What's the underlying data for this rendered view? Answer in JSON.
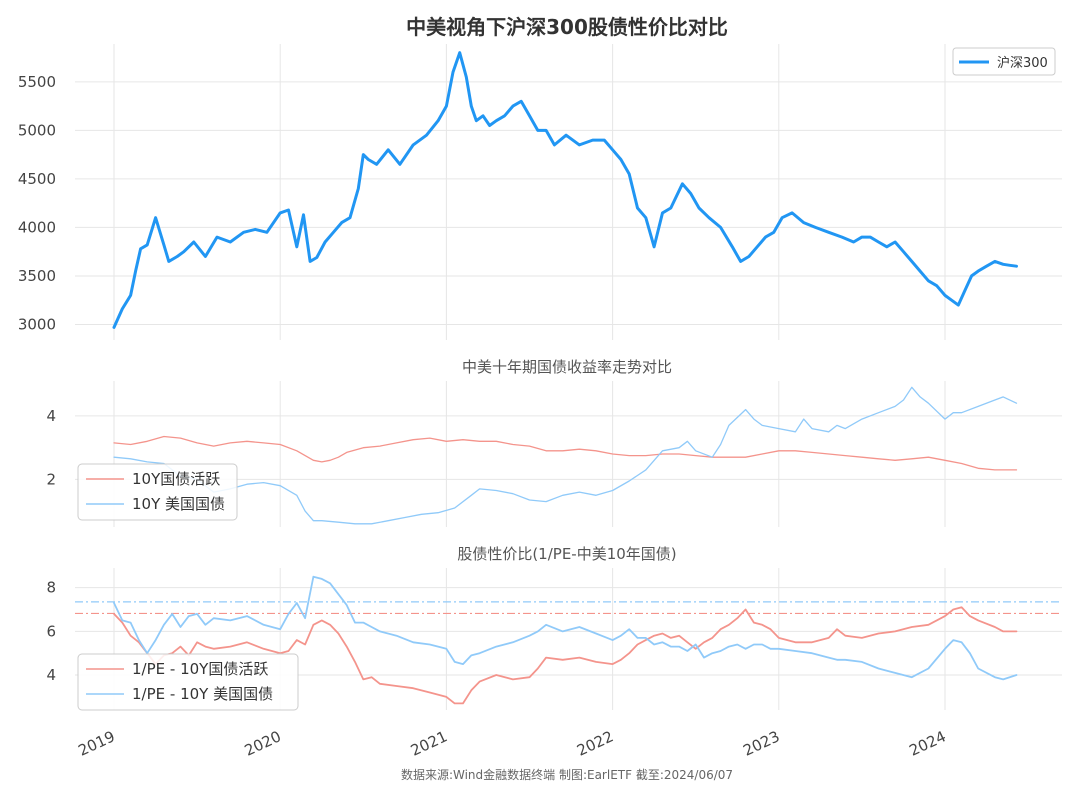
{
  "colors": {
    "hs300": "#2196f3",
    "cn10y": "#f4948c",
    "us10y": "#90caf9",
    "cn_ref": "#f4948c",
    "us_ref": "#90caf9"
  },
  "footer": "数据来源:Wind金融数据终端  制图:EarlETF 截至:2024/06/07",
  "x_ticks": [
    "2019",
    "2020",
    "2021",
    "2022",
    "2023",
    "2024"
  ],
  "chart_data": [
    {
      "id": "top",
      "type": "line",
      "title": "中美视角下沪深300股债性价比对比",
      "x_range": [
        2018.99,
        2024.43
      ],
      "ylim": [
        2840,
        5890
      ],
      "y_ticks": [
        3000,
        3500,
        4000,
        4500,
        5000,
        5500
      ],
      "legend": {
        "position": "top-right",
        "entries": [
          "沪深300"
        ]
      },
      "series": [
        {
          "name": "沪深300",
          "color_key": "hs300",
          "x": [
            2019.0,
            2019.05,
            2019.1,
            2019.13,
            2019.16,
            2019.2,
            2019.25,
            2019.3,
            2019.33,
            2019.38,
            2019.42,
            2019.48,
            2019.55,
            2019.62,
            2019.7,
            2019.78,
            2019.85,
            2019.92,
            2020.0,
            2020.05,
            2020.1,
            2020.14,
            2020.18,
            2020.22,
            2020.27,
            2020.32,
            2020.37,
            2020.42,
            2020.47,
            2020.5,
            2020.53,
            2020.58,
            2020.65,
            2020.72,
            2020.8,
            2020.88,
            2020.95,
            2021.0,
            2021.04,
            2021.08,
            2021.12,
            2021.15,
            2021.18,
            2021.22,
            2021.26,
            2021.3,
            2021.35,
            2021.4,
            2021.45,
            2021.5,
            2021.55,
            2021.6,
            2021.65,
            2021.72,
            2021.8,
            2021.88,
            2021.95,
            2022.0,
            2022.05,
            2022.1,
            2022.15,
            2022.2,
            2022.25,
            2022.3,
            2022.35,
            2022.42,
            2022.47,
            2022.52,
            2022.58,
            2022.65,
            2022.72,
            2022.77,
            2022.82,
            2022.87,
            2022.92,
            2022.97,
            2023.02,
            2023.08,
            2023.15,
            2023.22,
            2023.3,
            2023.38,
            2023.45,
            2023.5,
            2023.55,
            2023.6,
            2023.65,
            2023.7,
            2023.75,
            2023.8,
            2023.85,
            2023.9,
            2023.95,
            2024.0,
            2024.04,
            2024.08,
            2024.12,
            2024.16,
            2024.2,
            2024.25,
            2024.3,
            2024.35,
            2024.39,
            2024.43
          ],
          "y": [
            2970,
            3160,
            3300,
            3550,
            3780,
            3820,
            4100,
            3820,
            3650,
            3700,
            3750,
            3850,
            3700,
            3900,
            3850,
            3950,
            3980,
            3950,
            4150,
            4180,
            3800,
            4130,
            3650,
            3690,
            3850,
            3950,
            4050,
            4100,
            4400,
            4750,
            4700,
            4650,
            4800,
            4650,
            4850,
            4950,
            5100,
            5250,
            5600,
            5800,
            5550,
            5250,
            5100,
            5150,
            5050,
            5100,
            5150,
            5250,
            5300,
            5150,
            5000,
            5000,
            4850,
            4950,
            4850,
            4900,
            4900,
            4800,
            4700,
            4550,
            4200,
            4100,
            3800,
            4150,
            4200,
            4450,
            4350,
            4200,
            4100,
            4000,
            3800,
            3650,
            3700,
            3800,
            3900,
            3950,
            4100,
            4150,
            4050,
            4000,
            3950,
            3900,
            3850,
            3900,
            3900,
            3850,
            3800,
            3850,
            3750,
            3650,
            3550,
            3450,
            3400,
            3300,
            3250,
            3200,
            3350,
            3500,
            3550,
            3600,
            3650,
            3620,
            3610,
            3600
          ]
        }
      ]
    },
    {
      "id": "middle",
      "type": "line",
      "title": "中美十年期国债收益率走势对比",
      "x_range": [
        2018.99,
        2024.43
      ],
      "ylim": [
        0.5,
        5.1
      ],
      "y_ticks": [
        2,
        4
      ],
      "legend": {
        "position": "lower-left",
        "entries": [
          "10Y国债活跃",
          "10Y 美国国债"
        ]
      },
      "series": [
        {
          "name": "10Y国债活跃",
          "color_key": "cn10y",
          "x": [
            2019.0,
            2019.1,
            2019.2,
            2019.3,
            2019.4,
            2019.5,
            2019.6,
            2019.7,
            2019.8,
            2019.9,
            2020.0,
            2020.1,
            2020.2,
            2020.25,
            2020.3,
            2020.35,
            2020.4,
            2020.5,
            2020.6,
            2020.7,
            2020.8,
            2020.9,
            2021.0,
            2021.1,
            2021.2,
            2021.3,
            2021.4,
            2021.5,
            2021.6,
            2021.7,
            2021.8,
            2021.9,
            2022.0,
            2022.1,
            2022.2,
            2022.3,
            2022.4,
            2022.5,
            2022.6,
            2022.7,
            2022.8,
            2022.9,
            2023.0,
            2023.1,
            2023.2,
            2023.3,
            2023.4,
            2023.5,
            2023.6,
            2023.7,
            2023.8,
            2023.9,
            2024.0,
            2024.1,
            2024.2,
            2024.3,
            2024.43
          ],
          "y": [
            3.15,
            3.1,
            3.2,
            3.35,
            3.3,
            3.15,
            3.05,
            3.15,
            3.2,
            3.15,
            3.1,
            2.9,
            2.6,
            2.55,
            2.6,
            2.7,
            2.85,
            3.0,
            3.05,
            3.15,
            3.25,
            3.3,
            3.2,
            3.25,
            3.2,
            3.2,
            3.1,
            3.05,
            2.9,
            2.9,
            2.95,
            2.9,
            2.8,
            2.75,
            2.75,
            2.8,
            2.8,
            2.75,
            2.7,
            2.7,
            2.7,
            2.8,
            2.9,
            2.9,
            2.85,
            2.8,
            2.75,
            2.7,
            2.65,
            2.6,
            2.65,
            2.7,
            2.6,
            2.5,
            2.35,
            2.3,
            2.3
          ]
        },
        {
          "name": "10Y 美国国债",
          "color_key": "us10y",
          "x": [
            2019.0,
            2019.1,
            2019.2,
            2019.3,
            2019.4,
            2019.5,
            2019.6,
            2019.7,
            2019.8,
            2019.9,
            2020.0,
            2020.1,
            2020.15,
            2020.2,
            2020.25,
            2020.35,
            2020.45,
            2020.55,
            2020.65,
            2020.75,
            2020.85,
            2020.95,
            2021.05,
            2021.15,
            2021.2,
            2021.3,
            2021.4,
            2021.5,
            2021.6,
            2021.7,
            2021.8,
            2021.9,
            2022.0,
            2022.1,
            2022.2,
            2022.3,
            2022.4,
            2022.45,
            2022.5,
            2022.6,
            2022.65,
            2022.7,
            2022.8,
            2022.85,
            2022.9,
            2023.0,
            2023.1,
            2023.15,
            2023.2,
            2023.3,
            2023.35,
            2023.4,
            2023.5,
            2023.6,
            2023.7,
            2023.75,
            2023.8,
            2023.85,
            2023.9,
            2024.0,
            2024.05,
            2024.1,
            2024.2,
            2024.3,
            2024.35,
            2024.43
          ],
          "y": [
            2.7,
            2.65,
            2.55,
            2.5,
            2.1,
            2.0,
            1.6,
            1.7,
            1.85,
            1.9,
            1.8,
            1.5,
            1.0,
            0.7,
            0.7,
            0.65,
            0.6,
            0.6,
            0.7,
            0.8,
            0.9,
            0.95,
            1.1,
            1.5,
            1.7,
            1.65,
            1.55,
            1.35,
            1.3,
            1.5,
            1.6,
            1.5,
            1.65,
            1.95,
            2.3,
            2.9,
            3.0,
            3.2,
            2.9,
            2.7,
            3.1,
            3.7,
            4.2,
            3.9,
            3.7,
            3.6,
            3.5,
            3.9,
            3.6,
            3.5,
            3.7,
            3.6,
            3.9,
            4.1,
            4.3,
            4.5,
            4.9,
            4.6,
            4.4,
            3.9,
            4.1,
            4.1,
            4.3,
            4.5,
            4.6,
            4.4
          ]
        }
      ]
    },
    {
      "id": "bottom",
      "type": "line",
      "title": "股债性价比(1/PE-中美10年国债)",
      "x_range": [
        2018.99,
        2024.43
      ],
      "ylim": [
        2.4,
        8.9
      ],
      "y_ticks": [
        4,
        6,
        8
      ],
      "reference_lines": [
        {
          "color_key": "us_ref",
          "value": 7.35
        },
        {
          "color_key": "cn_ref",
          "value": 6.82
        }
      ],
      "legend": {
        "position": "lower-left",
        "entries": [
          "1/PE - 10Y国债活跃",
          "1/PE - 10Y 美国国债"
        ]
      },
      "series": [
        {
          "name": "1/PE - 10Y国债活跃",
          "color_key": "cn10y",
          "x": [
            2019.0,
            2019.05,
            2019.1,
            2019.15,
            2019.2,
            2019.25,
            2019.3,
            2019.35,
            2019.4,
            2019.45,
            2019.5,
            2019.55,
            2019.6,
            2019.7,
            2019.8,
            2019.9,
            2020.0,
            2020.05,
            2020.1,
            2020.15,
            2020.2,
            2020.25,
            2020.3,
            2020.35,
            2020.4,
            2020.45,
            2020.5,
            2020.55,
            2020.6,
            2020.7,
            2020.8,
            2020.9,
            2021.0,
            2021.05,
            2021.1,
            2021.15,
            2021.2,
            2021.3,
            2021.4,
            2021.5,
            2021.55,
            2021.6,
            2021.7,
            2021.8,
            2021.9,
            2022.0,
            2022.05,
            2022.1,
            2022.15,
            2022.2,
            2022.25,
            2022.3,
            2022.35,
            2022.4,
            2022.45,
            2022.5,
            2022.55,
            2022.6,
            2022.65,
            2022.7,
            2022.75,
            2022.8,
            2022.85,
            2022.9,
            2022.95,
            2023.0,
            2023.1,
            2023.2,
            2023.3,
            2023.35,
            2023.4,
            2023.5,
            2023.6,
            2023.7,
            2023.8,
            2023.9,
            2024.0,
            2024.05,
            2024.1,
            2024.15,
            2024.2,
            2024.3,
            2024.35,
            2024.43
          ],
          "y": [
            6.8,
            6.4,
            5.8,
            5.5,
            5.0,
            4.5,
            4.9,
            5.0,
            5.3,
            4.9,
            5.5,
            5.3,
            5.2,
            5.3,
            5.5,
            5.2,
            5.0,
            5.1,
            5.6,
            5.4,
            6.3,
            6.5,
            6.3,
            5.9,
            5.3,
            4.6,
            3.8,
            3.9,
            3.6,
            3.5,
            3.4,
            3.2,
            3.0,
            2.7,
            2.7,
            3.3,
            3.7,
            4.0,
            3.8,
            3.9,
            4.3,
            4.8,
            4.7,
            4.8,
            4.6,
            4.5,
            4.7,
            5.0,
            5.4,
            5.6,
            5.8,
            5.9,
            5.7,
            5.8,
            5.5,
            5.2,
            5.5,
            5.7,
            6.1,
            6.3,
            6.6,
            7.0,
            6.4,
            6.3,
            6.1,
            5.7,
            5.5,
            5.5,
            5.7,
            6.1,
            5.8,
            5.7,
            5.9,
            6.0,
            6.2,
            6.3,
            6.7,
            7.0,
            7.1,
            6.7,
            6.5,
            6.2,
            6.0,
            6.0
          ]
        },
        {
          "name": "1/PE - 10Y 美国国债",
          "color_key": "us10y",
          "x": [
            2019.0,
            2019.05,
            2019.1,
            2019.15,
            2019.2,
            2019.25,
            2019.3,
            2019.35,
            2019.4,
            2019.45,
            2019.5,
            2019.55,
            2019.6,
            2019.7,
            2019.8,
            2019.9,
            2020.0,
            2020.05,
            2020.1,
            2020.15,
            2020.2,
            2020.25,
            2020.3,
            2020.35,
            2020.4,
            2020.45,
            2020.5,
            2020.55,
            2020.6,
            2020.7,
            2020.8,
            2020.9,
            2021.0,
            2021.05,
            2021.1,
            2021.15,
            2021.2,
            2021.3,
            2021.4,
            2021.5,
            2021.55,
            2021.6,
            2021.7,
            2021.8,
            2021.9,
            2022.0,
            2022.05,
            2022.1,
            2022.15,
            2022.2,
            2022.25,
            2022.3,
            2022.35,
            2022.4,
            2022.45,
            2022.5,
            2022.55,
            2022.6,
            2022.65,
            2022.7,
            2022.75,
            2022.8,
            2022.85,
            2022.9,
            2022.95,
            2023.0,
            2023.1,
            2023.2,
            2023.3,
            2023.35,
            2023.4,
            2023.5,
            2023.6,
            2023.7,
            2023.8,
            2023.9,
            2024.0,
            2024.05,
            2024.1,
            2024.15,
            2024.2,
            2024.3,
            2024.35,
            2024.43
          ],
          "y": [
            7.3,
            6.5,
            6.4,
            5.6,
            5.0,
            5.6,
            6.3,
            6.8,
            6.2,
            6.7,
            6.8,
            6.3,
            6.6,
            6.5,
            6.7,
            6.3,
            6.1,
            6.8,
            7.3,
            6.6,
            8.5,
            8.4,
            8.2,
            7.7,
            7.2,
            6.4,
            6.4,
            6.2,
            6.0,
            5.8,
            5.5,
            5.4,
            5.2,
            4.6,
            4.5,
            4.9,
            5.0,
            5.3,
            5.5,
            5.8,
            6.0,
            6.3,
            6.0,
            6.2,
            5.9,
            5.6,
            5.8,
            6.1,
            5.7,
            5.7,
            5.4,
            5.5,
            5.3,
            5.3,
            5.1,
            5.4,
            4.8,
            5.0,
            5.1,
            5.3,
            5.4,
            5.2,
            5.4,
            5.4,
            5.2,
            5.2,
            5.1,
            5.0,
            4.8,
            4.7,
            4.7,
            4.6,
            4.3,
            4.1,
            3.9,
            4.3,
            5.2,
            5.6,
            5.5,
            5.0,
            4.3,
            3.9,
            3.8,
            4.0
          ]
        }
      ]
    }
  ]
}
